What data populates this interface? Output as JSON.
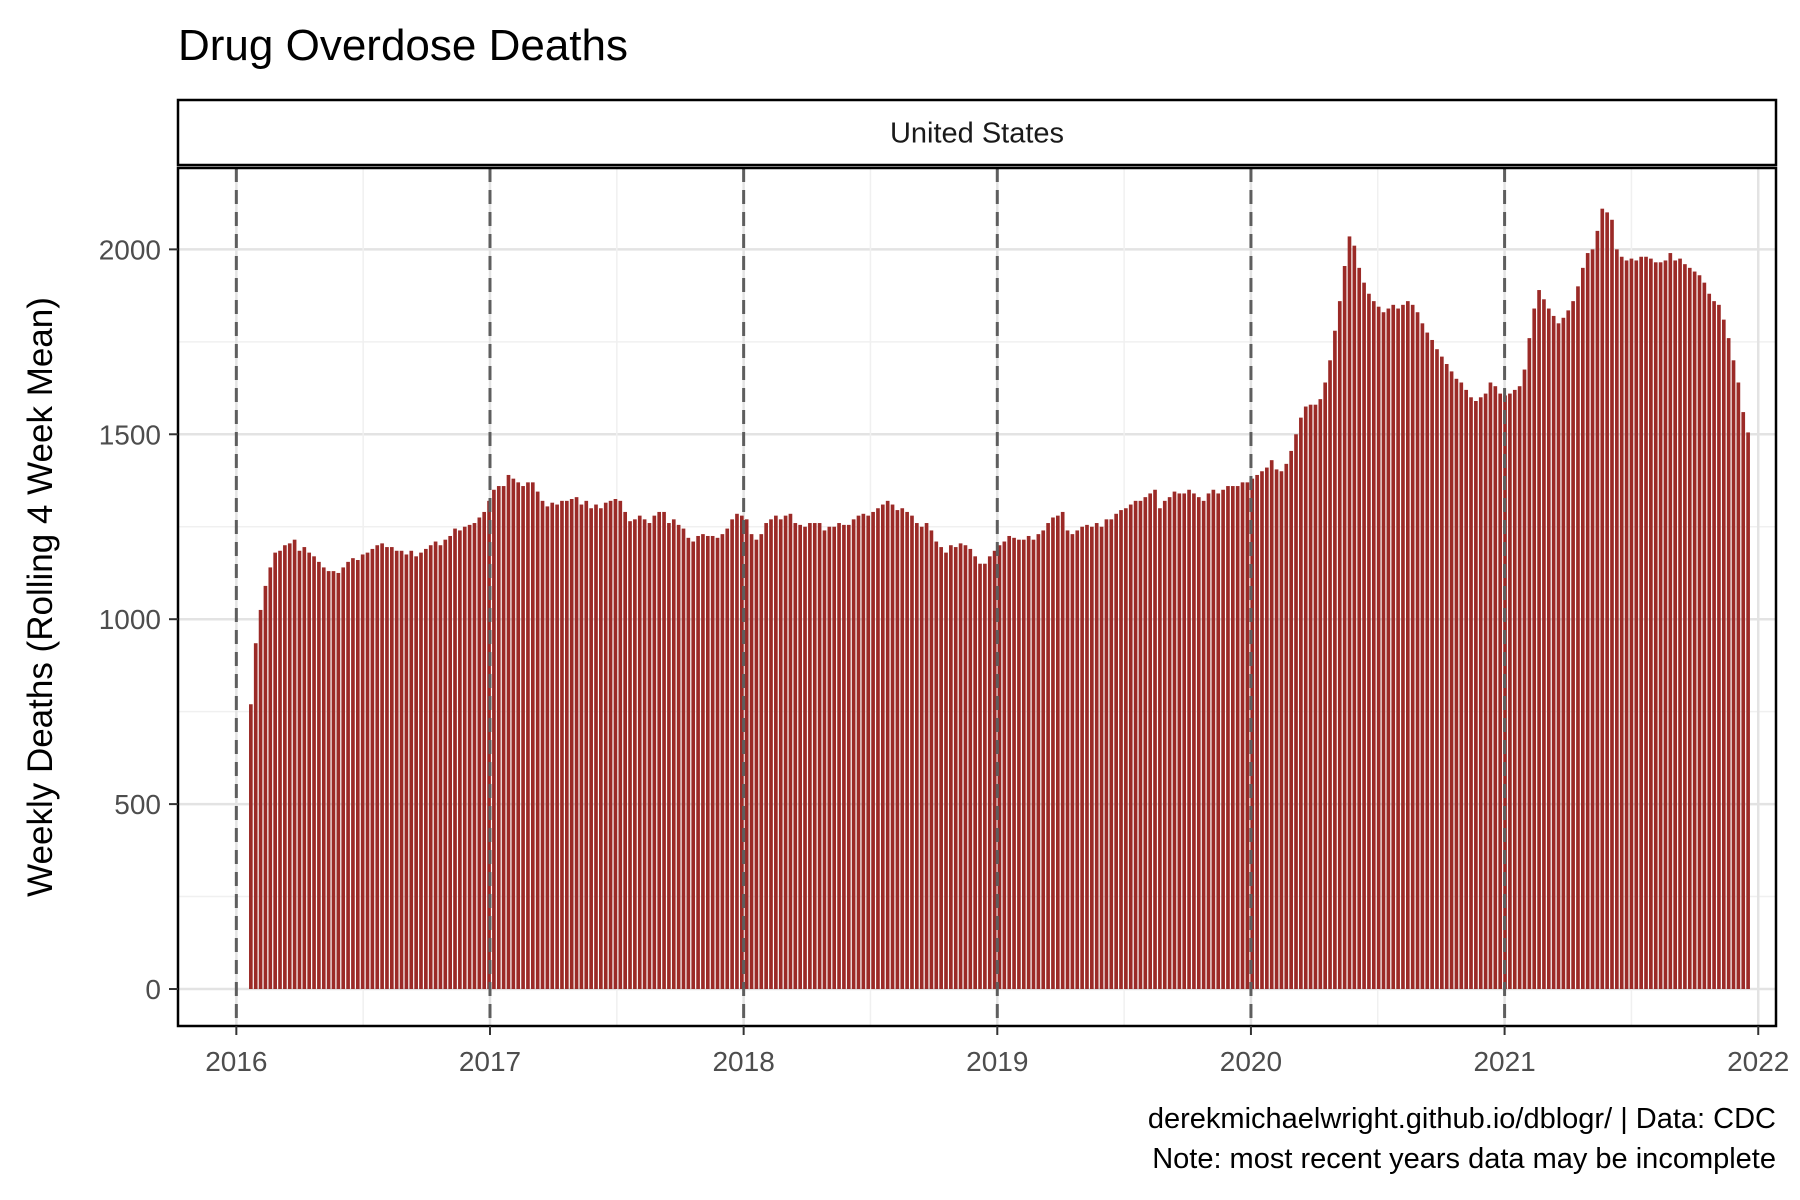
{
  "chart_data": {
    "type": "bar",
    "title": "Drug Overdose Deaths",
    "facet_label": "United States",
    "ylabel": "Weekly Deaths (Rolling 4 Week Mean)",
    "xlabel": "",
    "xlim": [
      2015.77,
      2022.07
    ],
    "ylim": [
      -100,
      2220
    ],
    "x_ticks": [
      2016,
      2017,
      2018,
      2019,
      2020,
      2021,
      2022
    ],
    "y_ticks": [
      0,
      500,
      1000,
      1500,
      2000
    ],
    "y_minor_ticks": [
      250,
      750,
      1250,
      1750
    ],
    "year_boundaries": [
      2016,
      2017,
      2018,
      2019,
      2020,
      2021
    ],
    "bar_color": "#9B2A27",
    "grid": true,
    "caption": [
      "derekmichaelwright.github.io/dblogr/ | Data: CDC",
      "Note: most recent years data may be incomplete"
    ],
    "series": [
      {
        "start": 2016.05,
        "step": 0.019165,
        "values": [
          770,
          935,
          1025,
          1090,
          1140,
          1180,
          1185,
          1200,
          1205,
          1215,
          1185,
          1195,
          1180,
          1170,
          1155,
          1140,
          1130,
          1130,
          1125,
          1140,
          1155,
          1165,
          1160,
          1175,
          1180,
          1190,
          1200,
          1205,
          1195,
          1195,
          1185,
          1185,
          1175,
          1185,
          1170,
          1180,
          1190,
          1200,
          1210,
          1200,
          1215,
          1225,
          1245,
          1240,
          1250,
          1255,
          1260,
          1275,
          1290,
          1320,
          1350,
          1360,
          1360,
          1390,
          1380,
          1370,
          1360,
          1370,
          1370,
          1345,
          1320,
          1305,
          1315,
          1310,
          1320,
          1320,
          1325,
          1330,
          1310,
          1320,
          1300,
          1310,
          1300,
          1315,
          1320,
          1325,
          1320,
          1290,
          1265,
          1270,
          1280,
          1270,
          1260,
          1280,
          1290,
          1290,
          1260,
          1270,
          1255,
          1245,
          1220,
          1210,
          1225,
          1230,
          1225,
          1225,
          1220,
          1230,
          1245,
          1270,
          1285,
          1280,
          1270,
          1230,
          1215,
          1230,
          1260,
          1270,
          1280,
          1270,
          1280,
          1285,
          1260,
          1255,
          1250,
          1260,
          1260,
          1260,
          1240,
          1250,
          1250,
          1260,
          1255,
          1255,
          1270,
          1280,
          1285,
          1280,
          1290,
          1300,
          1310,
          1320,
          1310,
          1295,
          1300,
          1290,
          1280,
          1260,
          1250,
          1260,
          1240,
          1210,
          1195,
          1180,
          1200,
          1195,
          1205,
          1200,
          1190,
          1170,
          1150,
          1150,
          1170,
          1185,
          1200,
          1210,
          1225,
          1220,
          1215,
          1215,
          1225,
          1215,
          1230,
          1240,
          1260,
          1275,
          1280,
          1290,
          1240,
          1230,
          1240,
          1250,
          1255,
          1250,
          1260,
          1250,
          1270,
          1270,
          1285,
          1295,
          1300,
          1310,
          1320,
          1320,
          1330,
          1340,
          1350,
          1300,
          1320,
          1330,
          1345,
          1340,
          1340,
          1350,
          1340,
          1330,
          1320,
          1340,
          1350,
          1340,
          1350,
          1360,
          1360,
          1360,
          1370,
          1370,
          1380,
          1390,
          1400,
          1410,
          1430,
          1405,
          1400,
          1420,
          1455,
          1500,
          1545,
          1575,
          1580,
          1580,
          1595,
          1640,
          1700,
          1780,
          1860,
          1955,
          2035,
          2010,
          1950,
          1910,
          1880,
          1860,
          1845,
          1830,
          1840,
          1850,
          1840,
          1850,
          1860,
          1850,
          1830,
          1800,
          1775,
          1755,
          1730,
          1710,
          1690,
          1670,
          1650,
          1640,
          1620,
          1600,
          1590,
          1600,
          1610,
          1640,
          1630,
          1610,
          1605,
          1610,
          1620,
          1630,
          1675,
          1760,
          1840,
          1890,
          1865,
          1840,
          1820,
          1800,
          1815,
          1835,
          1860,
          1900,
          1950,
          1990,
          2000,
          2050,
          2110,
          2100,
          2080,
          2000,
          1980,
          1970,
          1975,
          1970,
          1980,
          1980,
          1975,
          1965,
          1965,
          1970,
          1990,
          1970,
          1975,
          1960,
          1950,
          1940,
          1930,
          1910,
          1880,
          1860,
          1850,
          1810,
          1760,
          1700,
          1640,
          1560,
          1505
        ]
      }
    ]
  }
}
